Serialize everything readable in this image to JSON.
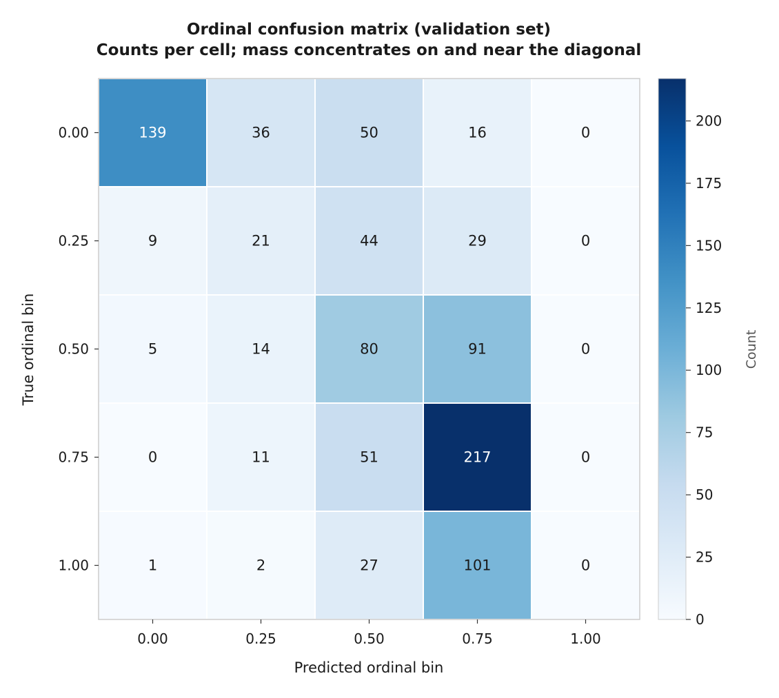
{
  "chart_data": {
    "type": "heatmap",
    "title": "Ordinal confusion matrix (validation set)",
    "subtitle": "Counts per cell; mass concentrates on and near the diagonal",
    "xlabel": "Predicted ordinal bin",
    "ylabel": "True ordinal bin",
    "x_categories": [
      "0.00",
      "0.25",
      "0.50",
      "0.75",
      "1.00"
    ],
    "y_categories": [
      "0.00",
      "0.25",
      "0.50",
      "0.75",
      "1.00"
    ],
    "values": [
      [
        139,
        36,
        50,
        16,
        0
      ],
      [
        9,
        21,
        44,
        29,
        0
      ],
      [
        5,
        14,
        80,
        91,
        0
      ],
      [
        0,
        11,
        51,
        217,
        0
      ],
      [
        1,
        2,
        27,
        101,
        0
      ]
    ],
    "colorbar": {
      "label": "Count",
      "range": [
        0,
        217
      ],
      "ticks": [
        0,
        25,
        50,
        75,
        100,
        125,
        150,
        175,
        200
      ],
      "colormap": "Blues"
    },
    "grid": false
  }
}
